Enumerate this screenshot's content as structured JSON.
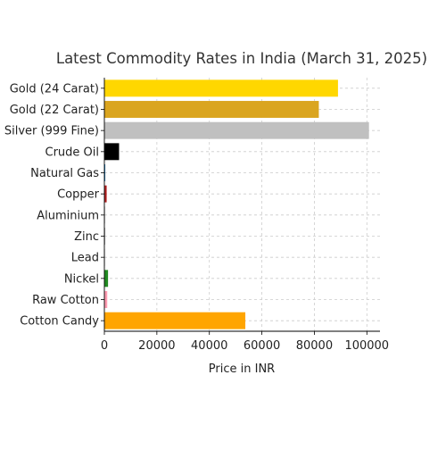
{
  "chart_data": {
    "type": "bar",
    "orientation": "horizontal",
    "title": "Latest Commodity Rates in India (March 31, 2025)",
    "xlabel": "Price in INR",
    "ylabel": "",
    "xlim": [
      0,
      105000
    ],
    "xticks": [
      0,
      20000,
      40000,
      60000,
      80000,
      100000
    ],
    "xtick_labels": [
      "0",
      "20000",
      "40000",
      "60000",
      "80000",
      "100000"
    ],
    "grid": true,
    "categories": [
      "Gold (24 Carat)",
      "Gold (22 Carat)",
      "Silver (999 Fine)",
      "Crude Oil",
      "Natural Gas",
      "Copper",
      "Aluminium",
      "Zinc",
      "Lead",
      "Nickel",
      "Raw Cotton",
      "Cotton Candy"
    ],
    "values": [
      89000,
      81700,
      100800,
      5600,
      350,
      880,
      250,
      270,
      180,
      1400,
      1100,
      53700
    ],
    "colors": [
      "#ffd700",
      "#daa520",
      "#c0c0c0",
      "#000000",
      "#1f77b4",
      "#b22222",
      "#a9a9a9",
      "#808080",
      "#444444",
      "#228b22",
      "#ff9ab0",
      "#ffa500"
    ]
  }
}
